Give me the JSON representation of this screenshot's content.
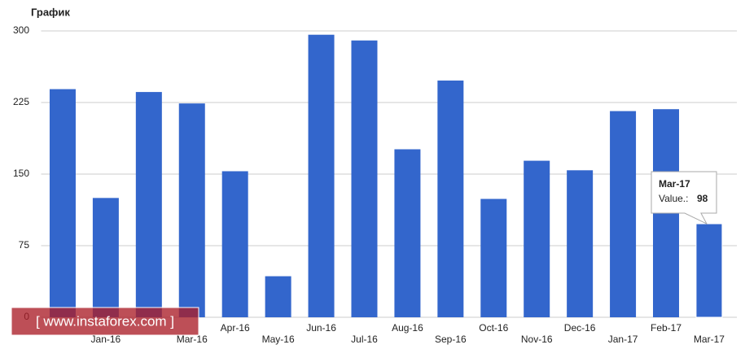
{
  "chart_data": {
    "type": "bar",
    "title": "График",
    "categories": [
      null,
      "Jan-16",
      null,
      "Mar-16",
      "Apr-16",
      "May-16",
      "Jun-16",
      "Jul-16",
      "Aug-16",
      "Sep-16",
      "Oct-16",
      "Nov-16",
      "Dec-16",
      "Jan-17",
      "Feb-17",
      "Mar-17"
    ],
    "values": [
      239,
      125,
      236,
      224,
      153,
      43,
      296,
      290,
      176,
      248,
      124,
      164,
      154,
      216,
      218,
      98
    ],
    "color": "#3366cc",
    "ylim": [
      0,
      300
    ],
    "yticks": [
      0,
      75,
      150,
      225,
      300
    ],
    "grid": true,
    "tooltip_label": "Value.:",
    "watermark": "[ www.instaforex.com ]"
  }
}
